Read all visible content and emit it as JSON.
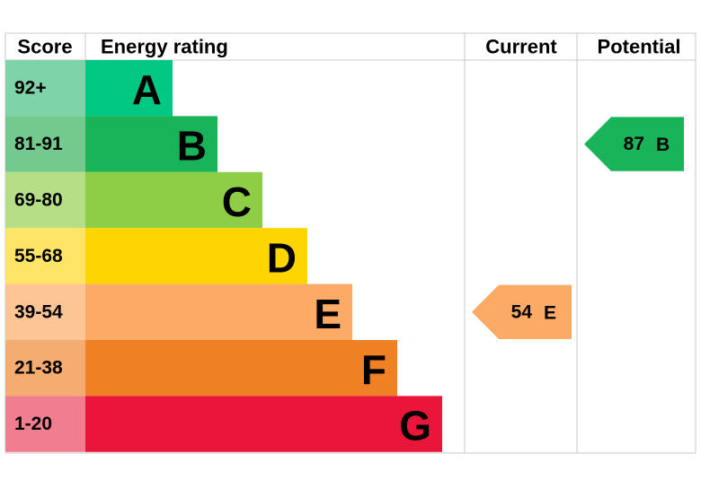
{
  "header": {
    "score": "Score",
    "rating": "Energy rating",
    "current": "Current",
    "potential": "Potential"
  },
  "bands": [
    {
      "range": "92+",
      "letter": "A",
      "color": "#00c781",
      "light": "#7fd3a9"
    },
    {
      "range": "81-91",
      "letter": "B",
      "color": "#19b459",
      "light": "#74c98f"
    },
    {
      "range": "69-80",
      "letter": "C",
      "color": "#8dce46",
      "light": "#b5df86"
    },
    {
      "range": "55-68",
      "letter": "D",
      "color": "#ffd500",
      "light": "#ffe566"
    },
    {
      "range": "39-54",
      "letter": "E",
      "color": "#fcaa65",
      "light": "#fdc595"
    },
    {
      "range": "21-38",
      "letter": "F",
      "color": "#ef8023",
      "light": "#f4ac70"
    },
    {
      "range": "1-20",
      "letter": "G",
      "color": "#e9153b",
      "light": "#f07d90"
    }
  ],
  "current": {
    "score": 54,
    "letter": "E",
    "band": 4
  },
  "potential": {
    "score": 87,
    "letter": "B",
    "band": 1
  }
}
